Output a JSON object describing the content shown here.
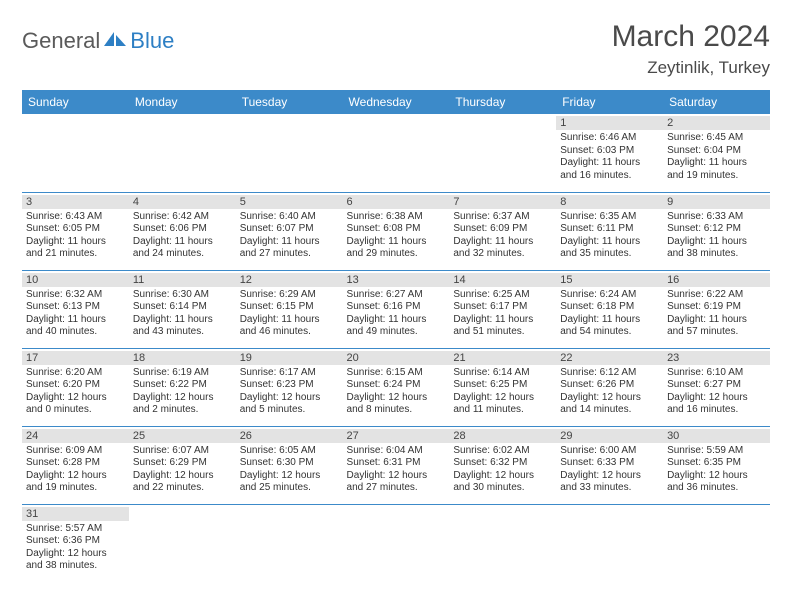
{
  "logo": {
    "part1": "General",
    "part2": "Blue"
  },
  "title": "March 2024",
  "location": "Zeytinlik, Turkey",
  "colors": {
    "header_bg": "#3c8ac9",
    "header_text": "#ffffff",
    "daynum_bg": "#e3e3e3",
    "row_border": "#3c8ac9",
    "logo_gray": "#5a5a5a",
    "logo_blue": "#2d7fc4"
  },
  "weekdays": [
    "Sunday",
    "Monday",
    "Tuesday",
    "Wednesday",
    "Thursday",
    "Friday",
    "Saturday"
  ],
  "weeks": [
    [
      {
        "n": "",
        "lines": []
      },
      {
        "n": "",
        "lines": []
      },
      {
        "n": "",
        "lines": []
      },
      {
        "n": "",
        "lines": []
      },
      {
        "n": "",
        "lines": []
      },
      {
        "n": "1",
        "lines": [
          "Sunrise: 6:46 AM",
          "Sunset: 6:03 PM",
          "Daylight: 11 hours and 16 minutes."
        ]
      },
      {
        "n": "2",
        "lines": [
          "Sunrise: 6:45 AM",
          "Sunset: 6:04 PM",
          "Daylight: 11 hours and 19 minutes."
        ]
      }
    ],
    [
      {
        "n": "3",
        "lines": [
          "Sunrise: 6:43 AM",
          "Sunset: 6:05 PM",
          "Daylight: 11 hours and 21 minutes."
        ]
      },
      {
        "n": "4",
        "lines": [
          "Sunrise: 6:42 AM",
          "Sunset: 6:06 PM",
          "Daylight: 11 hours and 24 minutes."
        ]
      },
      {
        "n": "5",
        "lines": [
          "Sunrise: 6:40 AM",
          "Sunset: 6:07 PM",
          "Daylight: 11 hours and 27 minutes."
        ]
      },
      {
        "n": "6",
        "lines": [
          "Sunrise: 6:38 AM",
          "Sunset: 6:08 PM",
          "Daylight: 11 hours and 29 minutes."
        ]
      },
      {
        "n": "7",
        "lines": [
          "Sunrise: 6:37 AM",
          "Sunset: 6:09 PM",
          "Daylight: 11 hours and 32 minutes."
        ]
      },
      {
        "n": "8",
        "lines": [
          "Sunrise: 6:35 AM",
          "Sunset: 6:11 PM",
          "Daylight: 11 hours and 35 minutes."
        ]
      },
      {
        "n": "9",
        "lines": [
          "Sunrise: 6:33 AM",
          "Sunset: 6:12 PM",
          "Daylight: 11 hours and 38 minutes."
        ]
      }
    ],
    [
      {
        "n": "10",
        "lines": [
          "Sunrise: 6:32 AM",
          "Sunset: 6:13 PM",
          "Daylight: 11 hours and 40 minutes."
        ]
      },
      {
        "n": "11",
        "lines": [
          "Sunrise: 6:30 AM",
          "Sunset: 6:14 PM",
          "Daylight: 11 hours and 43 minutes."
        ]
      },
      {
        "n": "12",
        "lines": [
          "Sunrise: 6:29 AM",
          "Sunset: 6:15 PM",
          "Daylight: 11 hours and 46 minutes."
        ]
      },
      {
        "n": "13",
        "lines": [
          "Sunrise: 6:27 AM",
          "Sunset: 6:16 PM",
          "Daylight: 11 hours and 49 minutes."
        ]
      },
      {
        "n": "14",
        "lines": [
          "Sunrise: 6:25 AM",
          "Sunset: 6:17 PM",
          "Daylight: 11 hours and 51 minutes."
        ]
      },
      {
        "n": "15",
        "lines": [
          "Sunrise: 6:24 AM",
          "Sunset: 6:18 PM",
          "Daylight: 11 hours and 54 minutes."
        ]
      },
      {
        "n": "16",
        "lines": [
          "Sunrise: 6:22 AM",
          "Sunset: 6:19 PM",
          "Daylight: 11 hours and 57 minutes."
        ]
      }
    ],
    [
      {
        "n": "17",
        "lines": [
          "Sunrise: 6:20 AM",
          "Sunset: 6:20 PM",
          "Daylight: 12 hours and 0 minutes."
        ]
      },
      {
        "n": "18",
        "lines": [
          "Sunrise: 6:19 AM",
          "Sunset: 6:22 PM",
          "Daylight: 12 hours and 2 minutes."
        ]
      },
      {
        "n": "19",
        "lines": [
          "Sunrise: 6:17 AM",
          "Sunset: 6:23 PM",
          "Daylight: 12 hours and 5 minutes."
        ]
      },
      {
        "n": "20",
        "lines": [
          "Sunrise: 6:15 AM",
          "Sunset: 6:24 PM",
          "Daylight: 12 hours and 8 minutes."
        ]
      },
      {
        "n": "21",
        "lines": [
          "Sunrise: 6:14 AM",
          "Sunset: 6:25 PM",
          "Daylight: 12 hours and 11 minutes."
        ]
      },
      {
        "n": "22",
        "lines": [
          "Sunrise: 6:12 AM",
          "Sunset: 6:26 PM",
          "Daylight: 12 hours and 14 minutes."
        ]
      },
      {
        "n": "23",
        "lines": [
          "Sunrise: 6:10 AM",
          "Sunset: 6:27 PM",
          "Daylight: 12 hours and 16 minutes."
        ]
      }
    ],
    [
      {
        "n": "24",
        "lines": [
          "Sunrise: 6:09 AM",
          "Sunset: 6:28 PM",
          "Daylight: 12 hours and 19 minutes."
        ]
      },
      {
        "n": "25",
        "lines": [
          "Sunrise: 6:07 AM",
          "Sunset: 6:29 PM",
          "Daylight: 12 hours and 22 minutes."
        ]
      },
      {
        "n": "26",
        "lines": [
          "Sunrise: 6:05 AM",
          "Sunset: 6:30 PM",
          "Daylight: 12 hours and 25 minutes."
        ]
      },
      {
        "n": "27",
        "lines": [
          "Sunrise: 6:04 AM",
          "Sunset: 6:31 PM",
          "Daylight: 12 hours and 27 minutes."
        ]
      },
      {
        "n": "28",
        "lines": [
          "Sunrise: 6:02 AM",
          "Sunset: 6:32 PM",
          "Daylight: 12 hours and 30 minutes."
        ]
      },
      {
        "n": "29",
        "lines": [
          "Sunrise: 6:00 AM",
          "Sunset: 6:33 PM",
          "Daylight: 12 hours and 33 minutes."
        ]
      },
      {
        "n": "30",
        "lines": [
          "Sunrise: 5:59 AM",
          "Sunset: 6:35 PM",
          "Daylight: 12 hours and 36 minutes."
        ]
      }
    ],
    [
      {
        "n": "31",
        "lines": [
          "Sunrise: 5:57 AM",
          "Sunset: 6:36 PM",
          "Daylight: 12 hours and 38 minutes."
        ]
      },
      {
        "n": "",
        "lines": []
      },
      {
        "n": "",
        "lines": []
      },
      {
        "n": "",
        "lines": []
      },
      {
        "n": "",
        "lines": []
      },
      {
        "n": "",
        "lines": []
      },
      {
        "n": "",
        "lines": []
      }
    ]
  ]
}
